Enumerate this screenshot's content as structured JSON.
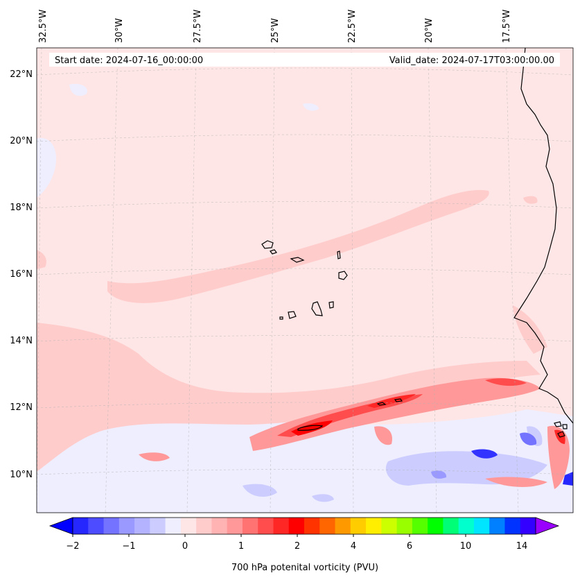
{
  "map": {
    "start_label": "Start date: 2024-07-16_00:00:00",
    "valid_label": "Valid_date: 2024-07-17T03:00:00.00",
    "lon_labels": [
      "32.5°W",
      "30°W",
      "27.5°W",
      "25°W",
      "22.5°W",
      "20°W",
      "17.5°W"
    ],
    "lat_labels": [
      "22°N",
      "20°N",
      "18°N",
      "16°N",
      "14°N",
      "12°N",
      "10°N"
    ],
    "region": {
      "lon_min": -33.0,
      "lon_max": -15.0,
      "lat_min": 8.9,
      "lat_max": 22.8
    },
    "background_color": "#ffe6e6"
  },
  "colorbar": {
    "label": "700 hPa potenital vorticity (PVU)",
    "tick_labels": [
      "−2",
      "−1",
      "0",
      "1",
      "2",
      "4",
      "6",
      "10",
      "14"
    ],
    "colors": [
      "#0000ff",
      "#2626ff",
      "#4d4dff",
      "#7373ff",
      "#9999ff",
      "#b3b3ff",
      "#ccccff",
      "#eeeeff",
      "#ffe6e6",
      "#ffcccc",
      "#ffb3b3",
      "#ff9999",
      "#ff7373",
      "#ff4d4d",
      "#ff2626",
      "#ff0000",
      "#ff3300",
      "#ff6600",
      "#ff9900",
      "#ffcc00",
      "#ffee00",
      "#ccff00",
      "#99ff00",
      "#55ff00",
      "#00ff00",
      "#00ff77",
      "#00ffcc",
      "#00e5ff",
      "#0080ff",
      "#0033ff",
      "#3300ff",
      "#9900ff"
    ]
  }
}
